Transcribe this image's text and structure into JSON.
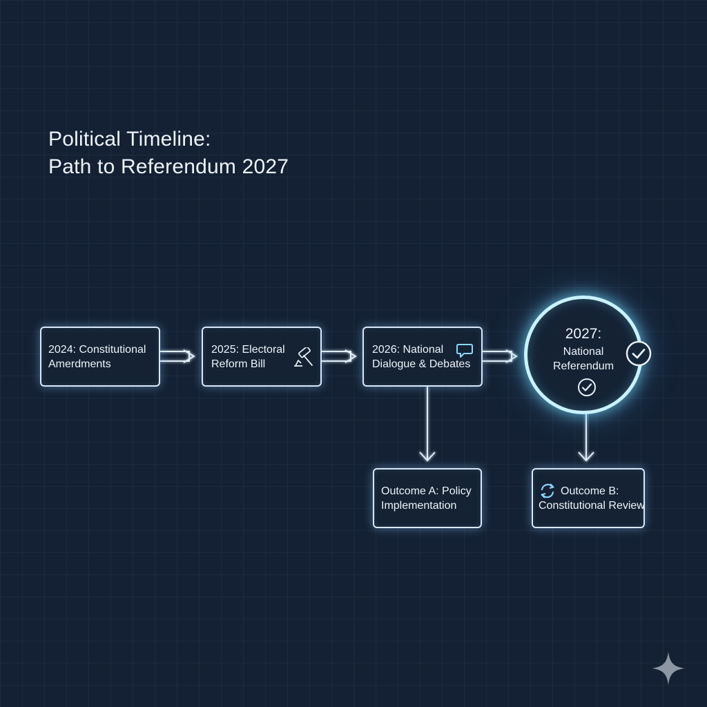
{
  "title": {
    "line1": "Political Timeline:",
    "line2": "Path to Referendum 2027"
  },
  "nodes": {
    "n2024": {
      "line1": "2024: Constitutional",
      "line2": "Amerdments"
    },
    "n2025": {
      "line1": "2025: Electoral",
      "line2": "Reform Bill",
      "icon": "gavel-icon"
    },
    "n2026": {
      "line1": "2026: National",
      "line2": "Dialogue & Debates",
      "icon": "speech-bubble-icon"
    },
    "n2027": {
      "year": "2027:",
      "line2": "National",
      "line3": "Referendum",
      "icons": [
        "check-circle-icon",
        "check-circle-icon"
      ]
    },
    "outcome_a": {
      "line1": "Outcome A: Policy",
      "line2": "Implementation"
    },
    "outcome_b": {
      "line1": "Outcome B:",
      "line2": "Constitutional Review",
      "icon": "refresh-icon"
    }
  },
  "colors": {
    "background": "#142134",
    "line": "#dbe9f7",
    "glow": "#8cc8ff",
    "highlight": "#c8f2ff"
  },
  "watermark": {
    "icon": "sparkle-icon"
  }
}
